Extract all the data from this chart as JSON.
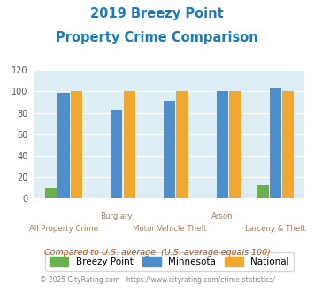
{
  "title_line1": "2019 Breezy Point",
  "title_line2": "Property Crime Comparison",
  "title_color": "#1a7abf",
  "categories": [
    "All Property Crime",
    "Burglary",
    "Motor Vehicle Theft",
    "Arson",
    "Larceny & Theft"
  ],
  "cat_labels_row1": [
    "",
    "Burglary",
    "",
    "Arson",
    ""
  ],
  "cat_labels_row2": [
    "All Property Crime",
    "",
    "Motor Vehicle Theft",
    "",
    "Larceny & Theft"
  ],
  "breezy_point": [
    10,
    0,
    0,
    0,
    13
  ],
  "minnesota": [
    99,
    83,
    91,
    100,
    103
  ],
  "national": [
    100,
    100,
    100,
    100,
    100
  ],
  "breezy_color": "#6ab04c",
  "mn_color": "#4d8fcc",
  "nat_color": "#f0a830",
  "bg_color": "#ddeef5",
  "ylim": [
    0,
    120
  ],
  "yticks": [
    0,
    20,
    40,
    60,
    80,
    100,
    120
  ],
  "legend_labels": [
    "Breezy Point",
    "Minnesota",
    "National"
  ],
  "footer_text1": "Compared to U.S. average. (U.S. average equals 100)",
  "footer_text2": "© 2025 CityRating.com - https://www.cityrating.com/crime-statistics/",
  "footer1_color": "#c05000",
  "footer2_color": "#888888"
}
